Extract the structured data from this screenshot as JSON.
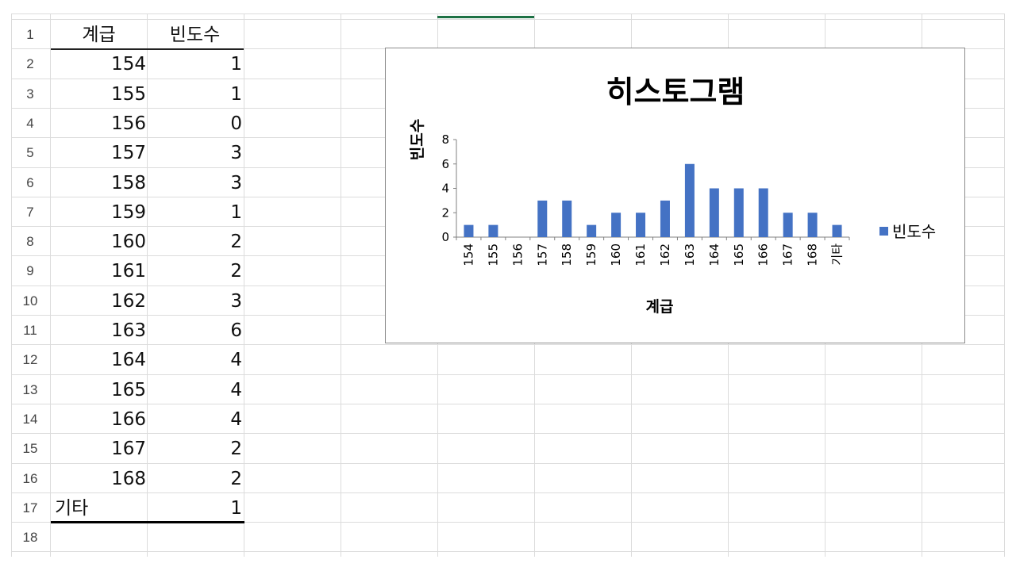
{
  "sheet": {
    "row_headers": [
      "1",
      "2",
      "3",
      "4",
      "5",
      "6",
      "7",
      "8",
      "9",
      "10",
      "11",
      "12",
      "13",
      "14",
      "15",
      "16",
      "17",
      "18"
    ],
    "header": {
      "col_a": "계급",
      "col_b": "빈도수"
    },
    "rows": [
      {
        "a": "154",
        "b": "1"
      },
      {
        "a": "155",
        "b": "1"
      },
      {
        "a": "156",
        "b": "0"
      },
      {
        "a": "157",
        "b": "3"
      },
      {
        "a": "158",
        "b": "3"
      },
      {
        "a": "159",
        "b": "1"
      },
      {
        "a": "160",
        "b": "2"
      },
      {
        "a": "161",
        "b": "2"
      },
      {
        "a": "162",
        "b": "3"
      },
      {
        "a": "163",
        "b": "6"
      },
      {
        "a": "164",
        "b": "4"
      },
      {
        "a": "165",
        "b": "4"
      },
      {
        "a": "166",
        "b": "4"
      },
      {
        "a": "167",
        "b": "2"
      },
      {
        "a": "168",
        "b": "2"
      },
      {
        "a": "기타",
        "b": "1"
      }
    ],
    "selection_color": "#1e7145"
  },
  "chart_data": {
    "type": "bar",
    "title": "히스토그램",
    "xlabel": "계급",
    "ylabel": "빈도수",
    "categories": [
      "154",
      "155",
      "156",
      "157",
      "158",
      "159",
      "160",
      "161",
      "162",
      "163",
      "164",
      "165",
      "166",
      "167",
      "168",
      "기타"
    ],
    "series": [
      {
        "name": "빈도수",
        "values": [
          1,
          1,
          0,
          3,
          3,
          1,
          2,
          2,
          3,
          6,
          4,
          4,
          4,
          2,
          2,
          1
        ],
        "color": "#4472c4"
      }
    ],
    "ylim": [
      0,
      8
    ],
    "yticks": [
      "0",
      "2",
      "4",
      "6",
      "8"
    ],
    "grid": false,
    "legend": "right"
  }
}
